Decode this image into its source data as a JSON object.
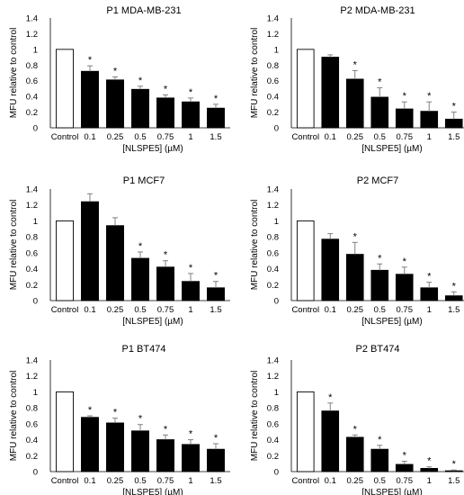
{
  "chart_data": [
    {
      "type": "bar",
      "title": "P1 MDA-MB-231",
      "ylabel": "MFU relative to control",
      "xlabel": "[NLSPE5] (µM)",
      "categories": [
        "Control",
        "0.1",
        "0.25",
        "0.5",
        "0.75",
        "1",
        "1.5"
      ],
      "values": [
        1.0,
        0.72,
        0.61,
        0.49,
        0.38,
        0.33,
        0.25
      ],
      "errors": [
        0,
        0.07,
        0.04,
        0.04,
        0.04,
        0.05,
        0.05
      ],
      "significant": [
        false,
        true,
        true,
        true,
        true,
        true,
        true
      ],
      "ylim": [
        0,
        1.4
      ],
      "yticks": [
        "0",
        "0.2",
        "0.4",
        "0.6",
        "0.8",
        "1",
        "1.2",
        "1.4"
      ],
      "star_label": "*"
    },
    {
      "type": "bar",
      "title": "P2 MDA-MB-231",
      "ylabel": "MFU relative to control",
      "xlabel": "[NLSPE5] (µM)",
      "categories": [
        "Control",
        "0.1",
        "0.25",
        "0.5",
        "0.75",
        "1",
        "1.5"
      ],
      "values": [
        1.0,
        0.9,
        0.62,
        0.39,
        0.24,
        0.21,
        0.11
      ],
      "errors": [
        0,
        0.03,
        0.11,
        0.12,
        0.09,
        0.12,
        0.09
      ],
      "significant": [
        false,
        false,
        true,
        true,
        true,
        true,
        true
      ],
      "ylim": [
        0,
        1.4
      ],
      "yticks": [
        "0",
        "0.2",
        "0.4",
        "0.6",
        "0.8",
        "1",
        "1.2",
        "1.4"
      ],
      "star_label": "*"
    },
    {
      "type": "bar",
      "title": "P1 MCF7",
      "ylabel": "MFU relative to control",
      "xlabel": "[NLSPE5] (µM)",
      "categories": [
        "Control",
        "0.1",
        "0.25",
        "0.5",
        "0.75",
        "1",
        "1.5"
      ],
      "values": [
        1.0,
        1.24,
        0.94,
        0.53,
        0.42,
        0.24,
        0.16
      ],
      "errors": [
        0,
        0.1,
        0.1,
        0.08,
        0.08,
        0.1,
        0.08
      ],
      "significant": [
        false,
        false,
        false,
        true,
        true,
        true,
        true
      ],
      "ylim": [
        0,
        1.4
      ],
      "yticks": [
        "0",
        "0.2",
        "0.4",
        "0.6",
        "0.8",
        "1",
        "1.2",
        "1.4"
      ],
      "star_label": "*"
    },
    {
      "type": "bar",
      "title": "P2 MCF7",
      "ylabel": "MFU relative to control",
      "xlabel": "[NLSPE5] (µM)",
      "categories": [
        "Control",
        "0.1",
        "0.25",
        "0.5",
        "0.75",
        "1",
        "1.5"
      ],
      "values": [
        1.0,
        0.77,
        0.58,
        0.38,
        0.33,
        0.16,
        0.06
      ],
      "errors": [
        0,
        0.07,
        0.15,
        0.08,
        0.09,
        0.07,
        0.05
      ],
      "significant": [
        false,
        false,
        true,
        true,
        true,
        true,
        true
      ],
      "ylim": [
        0,
        1.4
      ],
      "yticks": [
        "0",
        "0.2",
        "0.4",
        "0.6",
        "0.8",
        "1",
        "1.2",
        "1.4"
      ],
      "star_label": "*"
    },
    {
      "type": "bar",
      "title": "P1 BT474",
      "ylabel": "MFU relative to control",
      "xlabel": "[NLSPE5] (µM)",
      "categories": [
        "Control",
        "0.1",
        "0.25",
        "0.5",
        "0.75",
        "1",
        "1.5"
      ],
      "values": [
        1.0,
        0.68,
        0.61,
        0.51,
        0.4,
        0.34,
        0.28
      ],
      "errors": [
        0,
        0.02,
        0.06,
        0.08,
        0.06,
        0.06,
        0.07
      ],
      "significant": [
        false,
        true,
        true,
        true,
        true,
        true,
        true
      ],
      "ylim": [
        0,
        1.4
      ],
      "yticks": [
        "0",
        "0.2",
        "0.4",
        "0.6",
        "0.8",
        "1",
        "1.2",
        "1.4"
      ],
      "star_label": "*"
    },
    {
      "type": "bar",
      "title": "P2 BT474",
      "ylabel": "MFU relative to control",
      "xlabel": "[NLSPE5] (µM)",
      "categories": [
        "Control",
        "0.1",
        "0.25",
        "0.5",
        "0.75",
        "1",
        "1.5"
      ],
      "values": [
        1.0,
        0.76,
        0.43,
        0.28,
        0.09,
        0.04,
        0.01
      ],
      "errors": [
        0,
        0.1,
        0.03,
        0.05,
        0.04,
        0.02,
        0.01
      ],
      "significant": [
        false,
        true,
        true,
        true,
        true,
        true,
        true
      ],
      "ylim": [
        0,
        1.4
      ],
      "yticks": [
        "0",
        "0.2",
        "0.4",
        "0.6",
        "0.8",
        "1",
        "1.2",
        "1.4"
      ],
      "star_label": "*"
    }
  ],
  "colors": {
    "control_fill": "#ffffff",
    "treatment_fill": "#000000",
    "bar_stroke": "#000000",
    "error_bar": "#808080",
    "axis_line": "#000000"
  }
}
